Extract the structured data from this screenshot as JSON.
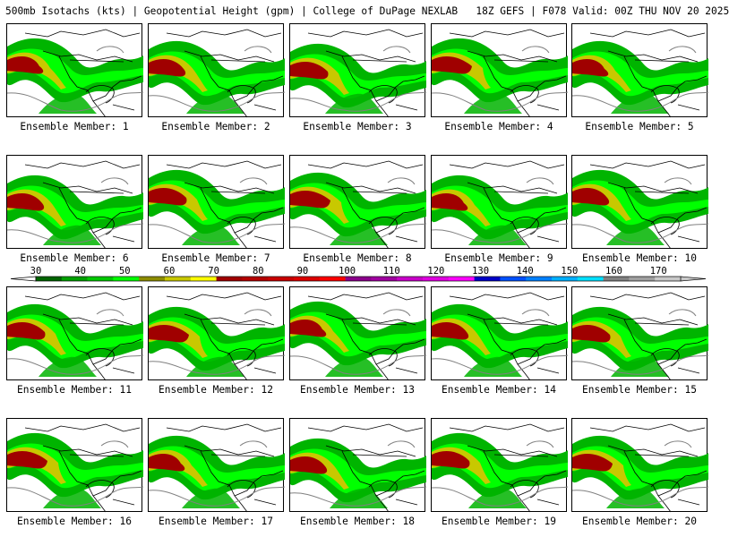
{
  "header": {
    "title": "500mb Isotachs (kts) | Geopotential Height (gpm) | College of DuPage NEXLAB   18Z GEFS | F078 Valid: 00Z THU NOV 20 2025"
  },
  "panels": [
    {
      "label": "Ensemble Member: 1"
    },
    {
      "label": "Ensemble Member: 2"
    },
    {
      "label": "Ensemble Member: 3"
    },
    {
      "label": "Ensemble Member: 4"
    },
    {
      "label": "Ensemble Member: 5"
    },
    {
      "label": "Ensemble Member: 6"
    },
    {
      "label": "Ensemble Member: 7"
    },
    {
      "label": "Ensemble Member: 8"
    },
    {
      "label": "Ensemble Member: 9"
    },
    {
      "label": "Ensemble Member: 10"
    },
    {
      "label": "Ensemble Member: 11"
    },
    {
      "label": "Ensemble Member: 12"
    },
    {
      "label": "Ensemble Member: 13"
    },
    {
      "label": "Ensemble Member: 14"
    },
    {
      "label": "Ensemble Member: 15"
    },
    {
      "label": "Ensemble Member: 16"
    },
    {
      "label": "Ensemble Member: 17"
    },
    {
      "label": "Ensemble Member: 18"
    },
    {
      "label": "Ensemble Member: 19"
    },
    {
      "label": "Ensemble Member: 20"
    }
  ],
  "legend": {
    "ticks": [
      "30",
      "40",
      "50",
      "60",
      "70",
      "80",
      "90",
      "100",
      "110",
      "120",
      "130",
      "140",
      "150",
      "160",
      "170"
    ],
    "colors": [
      "#006400",
      "#00a000",
      "#00c800",
      "#00ff00",
      "#8c8c00",
      "#c8c800",
      "#ffff00",
      "#a00000",
      "#b40000",
      "#c80000",
      "#dc0000",
      "#ff0000",
      "#8b008b",
      "#a000a0",
      "#c800c8",
      "#e000e0",
      "#ff00ff",
      "#0000c8",
      "#0050ff",
      "#0080ff",
      "#00b0ff",
      "#00e0ff",
      "#808080",
      "#a0a0a0",
      "#c8c8c8"
    ]
  },
  "map_colors": {
    "weak": "#00b400",
    "moderate": "#00ff00",
    "strong": "#c8c800",
    "jet": "#a00000",
    "border": "#000000",
    "contour": "#808080"
  }
}
